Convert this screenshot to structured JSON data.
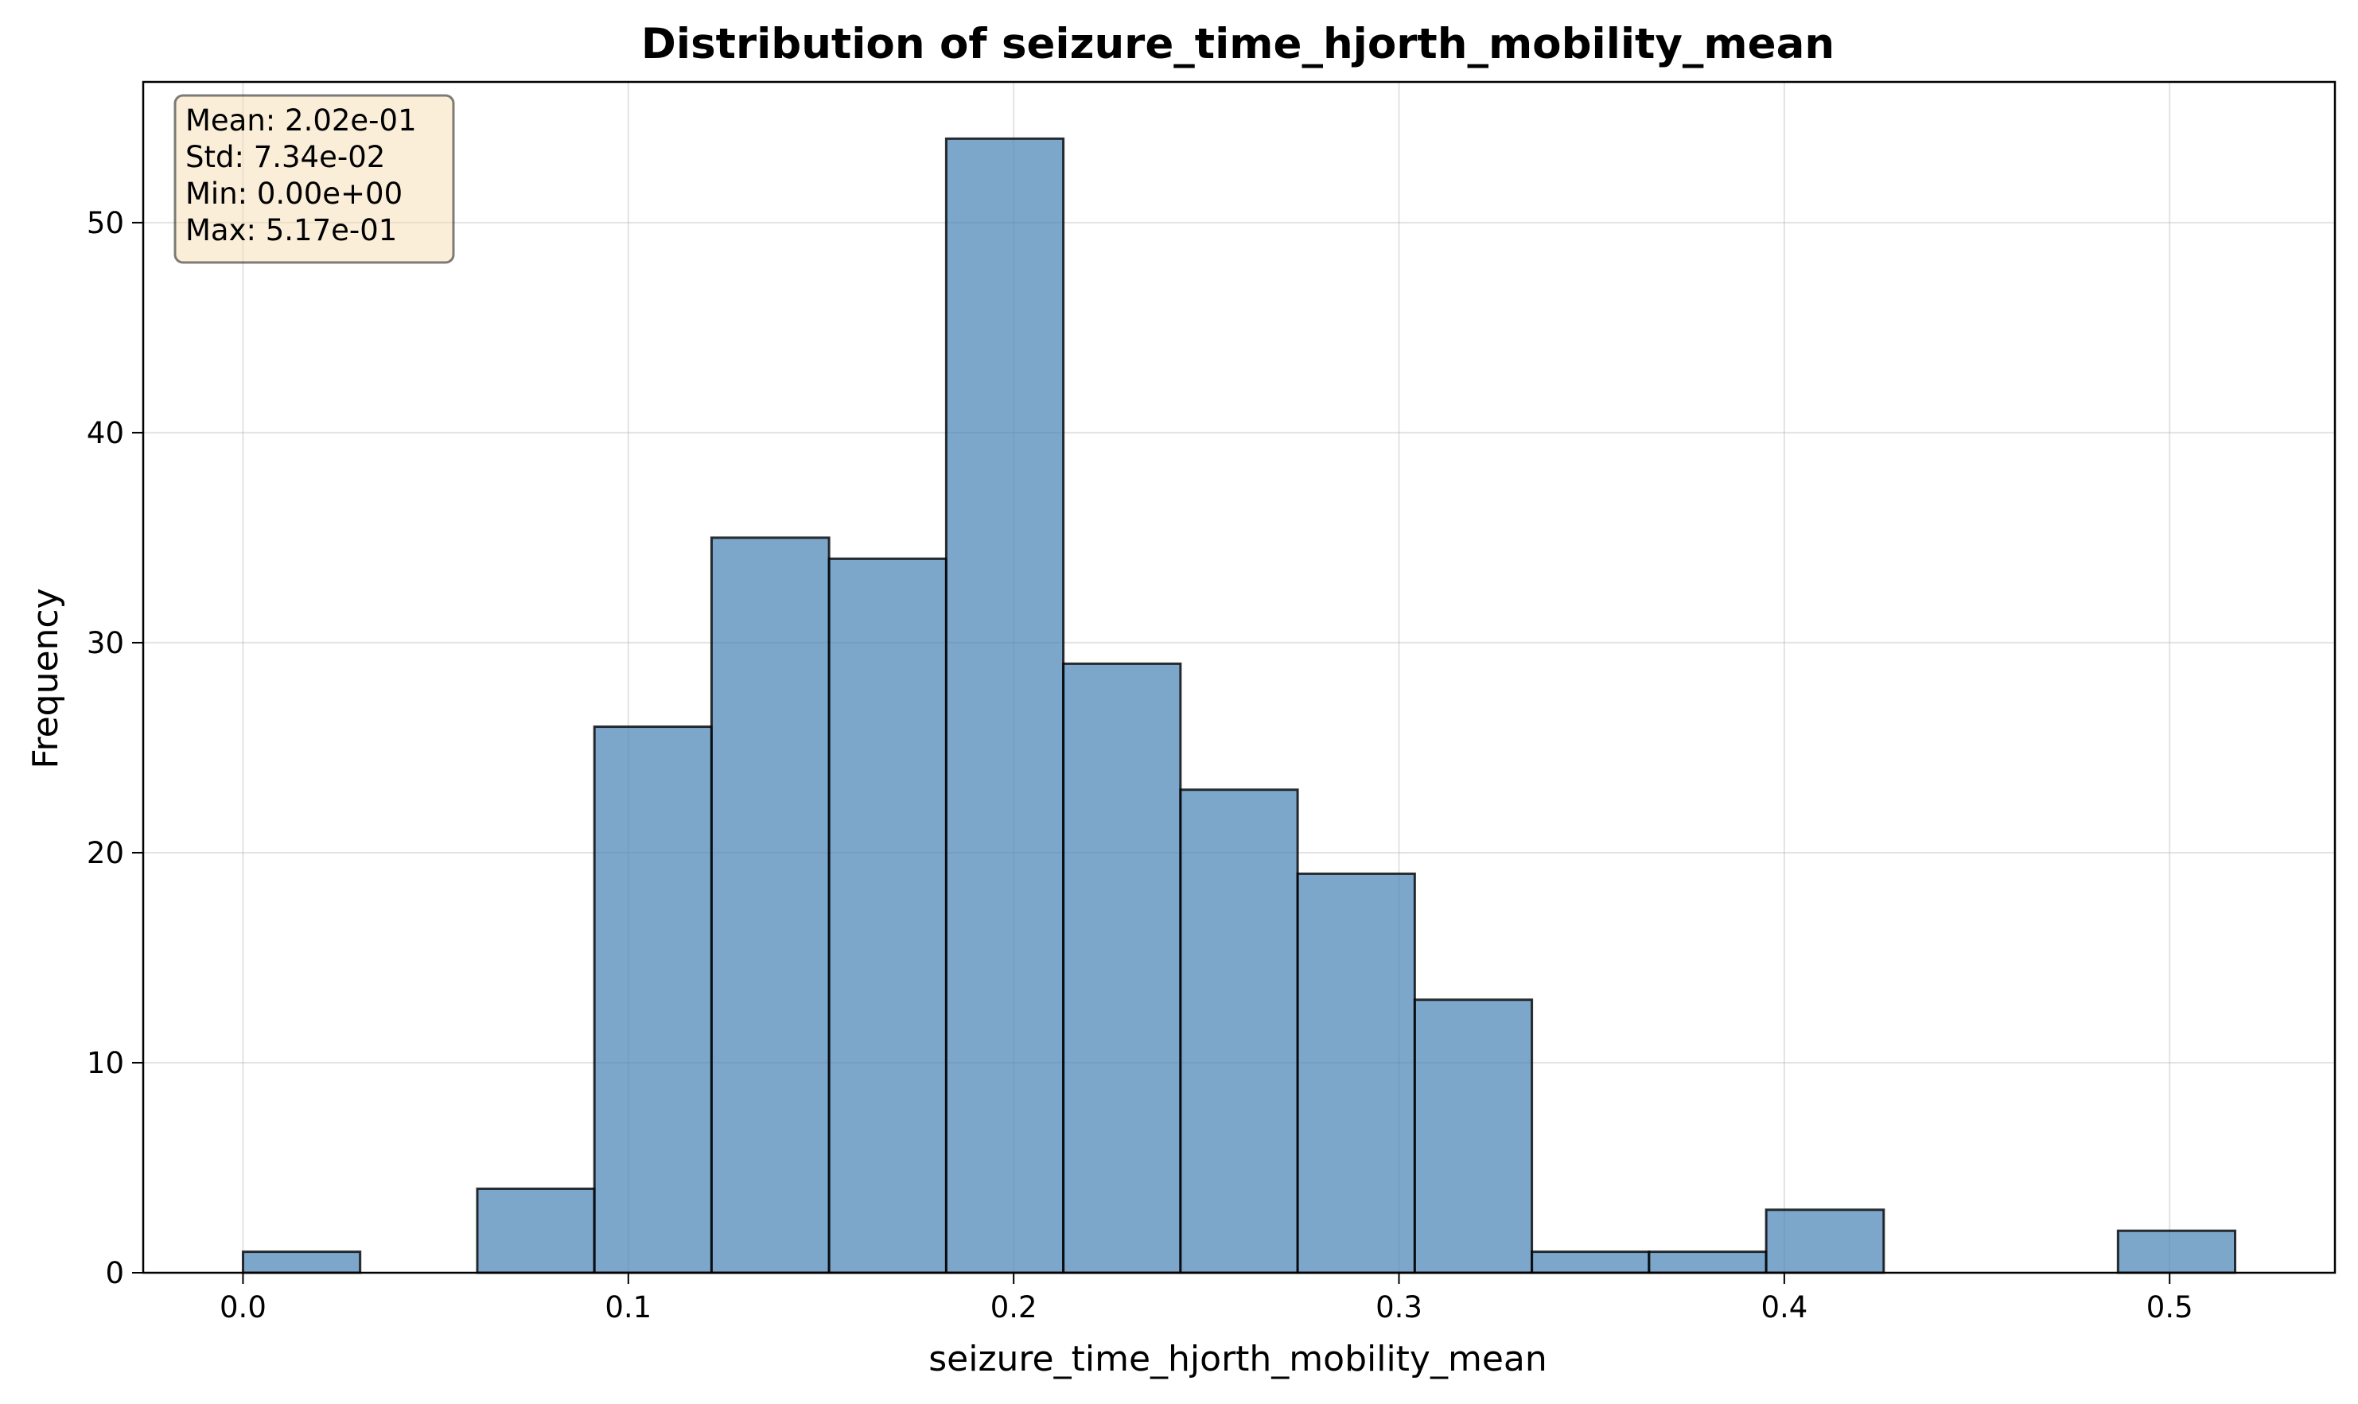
{
  "chart_data": {
    "type": "bar",
    "title": "Distribution of seizure_time_hjorth_mobility_mean",
    "xlabel": "seizure_time_hjorth_mobility_mean",
    "ylabel": "Frequency",
    "bin_edges": [
      0.0,
      0.0304,
      0.0608,
      0.0912,
      0.1216,
      0.1521,
      0.1825,
      0.2129,
      0.2433,
      0.2737,
      0.3041,
      0.3345,
      0.3649,
      0.3953,
      0.4258,
      0.4562,
      0.4866,
      0.517
    ],
    "values": [
      1,
      0,
      4,
      26,
      35,
      34,
      54,
      29,
      23,
      19,
      13,
      1,
      1,
      3,
      0,
      0,
      2
    ],
    "xlim": [
      -0.0259,
      0.5429
    ],
    "ylim": [
      0,
      56.7
    ],
    "xticks": [
      0.0,
      0.1,
      0.2,
      0.3,
      0.4,
      0.5
    ],
    "xtick_labels": [
      "0.0",
      "0.1",
      "0.2",
      "0.3",
      "0.4",
      "0.5"
    ],
    "yticks": [
      0,
      10,
      20,
      30,
      40,
      50
    ],
    "ytick_labels": [
      "0",
      "10",
      "20",
      "30",
      "40",
      "50"
    ],
    "grid": true,
    "bar_color": "#4682b4",
    "stats_box": {
      "placement": "top-left",
      "lines": [
        "Mean: 2.02e-01",
        "Std: 7.34e-02",
        "Min: 0.00e+00",
        "Max: 5.17e-01"
      ]
    }
  }
}
